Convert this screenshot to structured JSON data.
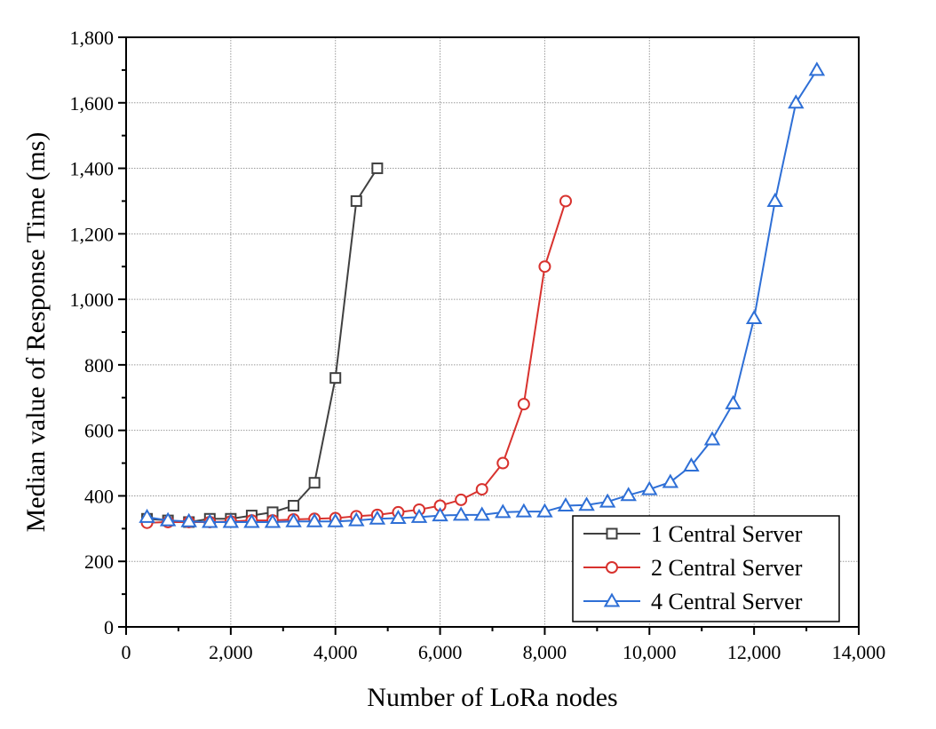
{
  "chart_data": {
    "type": "line",
    "title": "",
    "xlabel": "Number of LoRa nodes",
    "ylabel": "Median value of Response Time (ms)",
    "xlim": [
      0,
      14000
    ],
    "ylim": [
      0,
      1800
    ],
    "xticks": [
      0,
      2000,
      4000,
      6000,
      8000,
      10000,
      12000,
      14000
    ],
    "xtick_labels": [
      "0",
      "2,000",
      "4,000",
      "6,000",
      "8,000",
      "10,000",
      "12,000",
      "14,000"
    ],
    "yticks": [
      0,
      200,
      400,
      600,
      800,
      1000,
      1200,
      1400,
      1600,
      1800
    ],
    "ytick_labels": [
      "0",
      "200",
      "400",
      "600",
      "800",
      "1,000",
      "1,200",
      "1,400",
      "1,600",
      "1,800"
    ],
    "grid": true,
    "legend_position": "bottom-right",
    "series": [
      {
        "name": "1 Central Server",
        "color": "#404040",
        "marker": "square",
        "x": [
          400,
          800,
          1200,
          1600,
          2000,
          2400,
          2800,
          3200,
          3600,
          4000,
          4400,
          4800
        ],
        "y": [
          330,
          325,
          320,
          330,
          330,
          340,
          350,
          370,
          440,
          760,
          1300,
          1400
        ]
      },
      {
        "name": "2 Central Server",
        "color": "#d8322e",
        "marker": "circle",
        "x": [
          400,
          800,
          1200,
          1600,
          2000,
          2400,
          2800,
          3200,
          3600,
          4000,
          4400,
          4800,
          5200,
          5600,
          6000,
          6400,
          6800,
          7200,
          7600,
          8000,
          8400
        ],
        "y": [
          318,
          320,
          320,
          320,
          322,
          325,
          325,
          328,
          330,
          332,
          338,
          342,
          350,
          358,
          370,
          388,
          420,
          500,
          680,
          1100,
          1300
        ]
      },
      {
        "name": "4 Central Server",
        "color": "#2e6fd6",
        "marker": "triangle",
        "x": [
          400,
          800,
          1200,
          1600,
          2000,
          2400,
          2800,
          3200,
          3600,
          4000,
          4400,
          4800,
          5200,
          5600,
          6000,
          6400,
          6800,
          7200,
          7600,
          8000,
          8400,
          8800,
          9200,
          9600,
          10000,
          10400,
          10800,
          11200,
          11600,
          12000,
          12400,
          12800,
          13200
        ],
        "y": [
          335,
          325,
          322,
          320,
          320,
          320,
          320,
          322,
          322,
          322,
          325,
          330,
          332,
          335,
          340,
          342,
          342,
          350,
          352,
          352,
          370,
          372,
          382,
          402,
          420,
          442,
          492,
          572,
          682,
          942,
          1300,
          1600,
          1700
        ]
      }
    ]
  }
}
